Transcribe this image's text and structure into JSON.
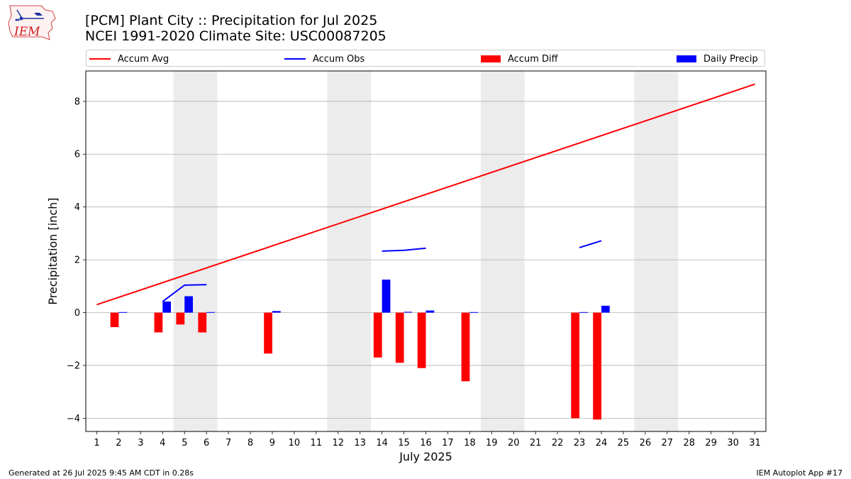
{
  "title_line1": "[PCM] Plant City :: Precipitation for Jul 2025",
  "title_line2": "NCEI 1991-2020 Climate Site: USC00087205",
  "logo_text": "IEM",
  "footer_left": "Generated at 26 Jul 2025 9:45 AM CDT in 0.28s",
  "footer_right": "IEM Autoplot App #17",
  "colors": {
    "accum_avg": "#ff0000",
    "accum_obs": "#0000ff",
    "accum_diff": "#ff0000",
    "daily_precip": "#0000ff",
    "weekend_shade": "#ececec",
    "grid": "#b0b0b0"
  },
  "legend": {
    "accum_avg": "Accum Avg",
    "accum_obs": "Accum Obs",
    "accum_diff": "Accum Diff",
    "daily_precip": "Daily Precip"
  },
  "chart_data": {
    "type": "bar",
    "xlabel": "July 2025",
    "ylabel": "Precipitation [inch]",
    "xlim": [
      0.5,
      31.5
    ],
    "ylim": [
      -4.5,
      9.15
    ],
    "yticks": [
      -4,
      -2,
      0,
      2,
      4,
      6,
      8
    ],
    "x": [
      1,
      2,
      3,
      4,
      5,
      6,
      7,
      8,
      9,
      10,
      11,
      12,
      13,
      14,
      15,
      16,
      17,
      18,
      19,
      20,
      21,
      22,
      23,
      24,
      25,
      26,
      27,
      28,
      29,
      30,
      31
    ],
    "grid": "horizontal",
    "legend_position": "top",
    "weekend_shading": [
      [
        5,
        6
      ],
      [
        12,
        13
      ],
      [
        19,
        20
      ],
      [
        26,
        27
      ]
    ],
    "series": [
      {
        "name": "Accum Avg",
        "type": "line",
        "x": [
          1,
          31
        ],
        "values": [
          0.3,
          8.65
        ]
      },
      {
        "name": "Accum Obs",
        "type": "line",
        "segments": [
          {
            "x": [
              4,
              5,
              6
            ],
            "values": [
              0.42,
              1.04,
              1.06
            ]
          },
          {
            "x": [
              14,
              15,
              16
            ],
            "values": [
              2.33,
              2.36,
              2.44
            ]
          },
          {
            "x": [
              23,
              24
            ],
            "values": [
              2.46,
              2.72
            ]
          }
        ]
      },
      {
        "name": "Accum Diff",
        "type": "bar",
        "x": [
          2,
          4,
          5,
          6,
          9,
          14,
          15,
          16,
          18,
          23,
          24
        ],
        "values": [
          -0.55,
          -0.75,
          -0.45,
          -0.75,
          -1.55,
          -1.7,
          -1.9,
          -2.1,
          -2.6,
          -4.0,
          -4.05
        ]
      },
      {
        "name": "Daily Precip",
        "type": "bar",
        "x": [
          2,
          4,
          5,
          6,
          9,
          14,
          15,
          16,
          18,
          23,
          24
        ],
        "values": [
          0.02,
          0.42,
          0.62,
          0.02,
          0.06,
          1.25,
          0.03,
          0.08,
          0.02,
          0.02,
          0.26
        ]
      }
    ]
  }
}
